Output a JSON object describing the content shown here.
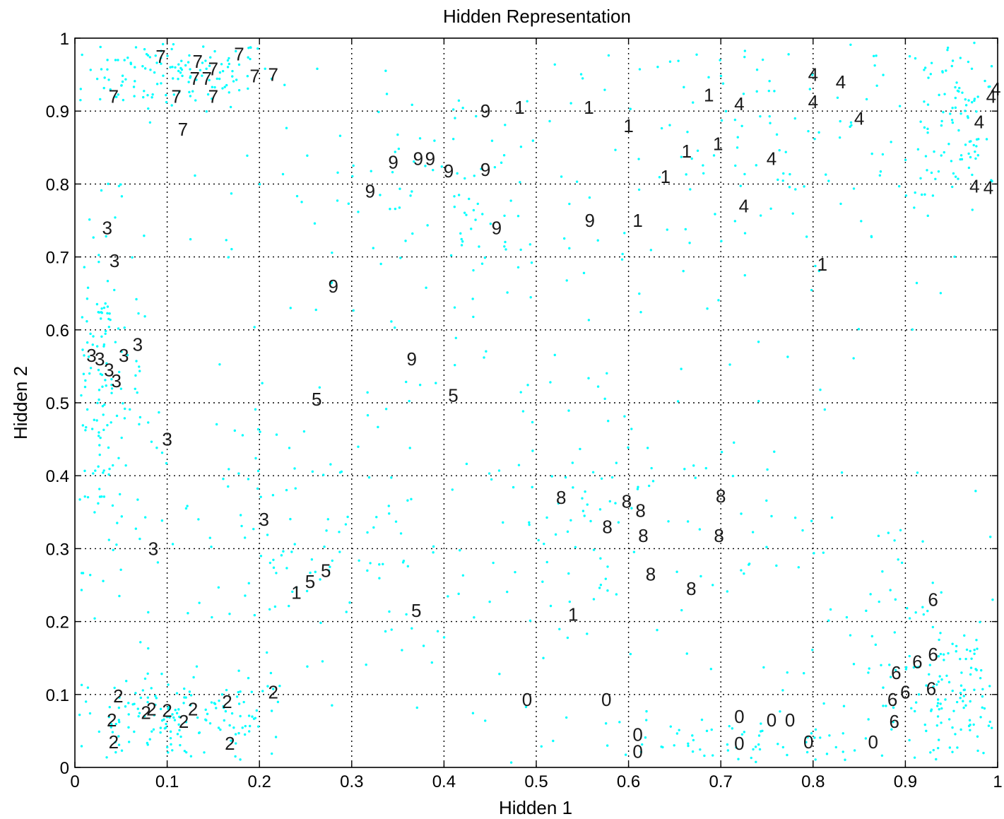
{
  "chart_data": {
    "type": "scatter",
    "title": "Hidden Representation",
    "xlabel": "Hidden 1",
    "ylabel": "Hidden 2",
    "xlim": [
      0,
      1
    ],
    "ylim": [
      0,
      1
    ],
    "grid": true,
    "xticks": [
      "0",
      "0.1",
      "0.2",
      "0.3",
      "0.4",
      "0.5",
      "0.6",
      "0.7",
      "0.8",
      "0.9",
      "1"
    ],
    "yticks": [
      "0",
      "0.1",
      "0.2",
      "0.3",
      "0.4",
      "0.5",
      "0.6",
      "0.7",
      "0.8",
      "0.9",
      "1"
    ],
    "colors": {
      "points": "#00ffff",
      "labels": "#1a1a1a",
      "grid": "#000000"
    },
    "digit_labels": [
      {
        "text": "7",
        "x": 0.093,
        "y": 0.975
      },
      {
        "text": "7",
        "x": 0.133,
        "y": 0.968
      },
      {
        "text": "7",
        "x": 0.178,
        "y": 0.978
      },
      {
        "text": "7",
        "x": 0.15,
        "y": 0.958
      },
      {
        "text": "7",
        "x": 0.13,
        "y": 0.945
      },
      {
        "text": "7",
        "x": 0.143,
        "y": 0.945
      },
      {
        "text": "7",
        "x": 0.195,
        "y": 0.948
      },
      {
        "text": "7",
        "x": 0.215,
        "y": 0.95
      },
      {
        "text": "7",
        "x": 0.042,
        "y": 0.92
      },
      {
        "text": "7",
        "x": 0.11,
        "y": 0.92
      },
      {
        "text": "7",
        "x": 0.15,
        "y": 0.92
      },
      {
        "text": "7",
        "x": 0.117,
        "y": 0.875
      },
      {
        "text": "3",
        "x": 0.035,
        "y": 0.74
      },
      {
        "text": "3",
        "x": 0.043,
        "y": 0.695
      },
      {
        "text": "3",
        "x": 0.068,
        "y": 0.58
      },
      {
        "text": "3",
        "x": 0.053,
        "y": 0.565
      },
      {
        "text": "3",
        "x": 0.018,
        "y": 0.565
      },
      {
        "text": "3",
        "x": 0.027,
        "y": 0.56
      },
      {
        "text": "3",
        "x": 0.037,
        "y": 0.545
      },
      {
        "text": "3",
        "x": 0.045,
        "y": 0.53
      },
      {
        "text": "3",
        "x": 0.1,
        "y": 0.45
      },
      {
        "text": "3",
        "x": 0.205,
        "y": 0.34
      },
      {
        "text": "3",
        "x": 0.085,
        "y": 0.3
      },
      {
        "text": "2",
        "x": 0.047,
        "y": 0.098
      },
      {
        "text": "2",
        "x": 0.083,
        "y": 0.08
      },
      {
        "text": "2",
        "x": 0.077,
        "y": 0.075
      },
      {
        "text": "2",
        "x": 0.1,
        "y": 0.078
      },
      {
        "text": "2",
        "x": 0.128,
        "y": 0.08
      },
      {
        "text": "2",
        "x": 0.165,
        "y": 0.09
      },
      {
        "text": "2",
        "x": 0.215,
        "y": 0.103
      },
      {
        "text": "2",
        "x": 0.04,
        "y": 0.065
      },
      {
        "text": "2",
        "x": 0.118,
        "y": 0.063
      },
      {
        "text": "2",
        "x": 0.042,
        "y": 0.035
      },
      {
        "text": "2",
        "x": 0.168,
        "y": 0.033
      },
      {
        "text": "9",
        "x": 0.445,
        "y": 0.9
      },
      {
        "text": "9",
        "x": 0.345,
        "y": 0.83
      },
      {
        "text": "9",
        "x": 0.372,
        "y": 0.835
      },
      {
        "text": "9",
        "x": 0.385,
        "y": 0.835
      },
      {
        "text": "9",
        "x": 0.405,
        "y": 0.818
      },
      {
        "text": "9",
        "x": 0.445,
        "y": 0.82
      },
      {
        "text": "9",
        "x": 0.32,
        "y": 0.79
      },
      {
        "text": "9",
        "x": 0.457,
        "y": 0.74
      },
      {
        "text": "9",
        "x": 0.558,
        "y": 0.75
      },
      {
        "text": "9",
        "x": 0.28,
        "y": 0.66
      },
      {
        "text": "9",
        "x": 0.365,
        "y": 0.56
      },
      {
        "text": "1",
        "x": 0.482,
        "y": 0.905
      },
      {
        "text": "1",
        "x": 0.557,
        "y": 0.905
      },
      {
        "text": "1",
        "x": 0.6,
        "y": 0.88
      },
      {
        "text": "1",
        "x": 0.687,
        "y": 0.922
      },
      {
        "text": "1",
        "x": 0.663,
        "y": 0.845
      },
      {
        "text": "1",
        "x": 0.697,
        "y": 0.855
      },
      {
        "text": "1",
        "x": 0.64,
        "y": 0.81
      },
      {
        "text": "1",
        "x": 0.61,
        "y": 0.75
      },
      {
        "text": "1",
        "x": 0.81,
        "y": 0.69
      },
      {
        "text": "1",
        "x": 0.24,
        "y": 0.24
      },
      {
        "text": "1",
        "x": 0.54,
        "y": 0.21
      },
      {
        "text": "4",
        "x": 0.8,
        "y": 0.95
      },
      {
        "text": "4",
        "x": 0.83,
        "y": 0.94
      },
      {
        "text": "4",
        "x": 0.72,
        "y": 0.91
      },
      {
        "text": "4",
        "x": 0.8,
        "y": 0.913
      },
      {
        "text": "4",
        "x": 0.85,
        "y": 0.89
      },
      {
        "text": "4",
        "x": 0.755,
        "y": 0.835
      },
      {
        "text": "4",
        "x": 0.725,
        "y": 0.77
      },
      {
        "text": "4",
        "x": 0.998,
        "y": 0.93
      },
      {
        "text": "4",
        "x": 0.993,
        "y": 0.92
      },
      {
        "text": "4",
        "x": 0.98,
        "y": 0.885
      },
      {
        "text": "4",
        "x": 0.975,
        "y": 0.797
      },
      {
        "text": "4",
        "x": 0.99,
        "y": 0.795
      },
      {
        "text": "5",
        "x": 0.262,
        "y": 0.505
      },
      {
        "text": "5",
        "x": 0.41,
        "y": 0.51
      },
      {
        "text": "5",
        "x": 0.272,
        "y": 0.27
      },
      {
        "text": "5",
        "x": 0.255,
        "y": 0.255
      },
      {
        "text": "5",
        "x": 0.37,
        "y": 0.215
      },
      {
        "text": "8",
        "x": 0.527,
        "y": 0.37
      },
      {
        "text": "8",
        "x": 0.598,
        "y": 0.365
      },
      {
        "text": "8",
        "x": 0.613,
        "y": 0.352
      },
      {
        "text": "8",
        "x": 0.7,
        "y": 0.372
      },
      {
        "text": "8",
        "x": 0.577,
        "y": 0.33
      },
      {
        "text": "8",
        "x": 0.616,
        "y": 0.318
      },
      {
        "text": "8",
        "x": 0.698,
        "y": 0.318
      },
      {
        "text": "8",
        "x": 0.624,
        "y": 0.265
      },
      {
        "text": "8",
        "x": 0.668,
        "y": 0.245
      },
      {
        "text": "0",
        "x": 0.49,
        "y": 0.093
      },
      {
        "text": "0",
        "x": 0.576,
        "y": 0.093
      },
      {
        "text": "0",
        "x": 0.72,
        "y": 0.07
      },
      {
        "text": "0",
        "x": 0.755,
        "y": 0.065
      },
      {
        "text": "0",
        "x": 0.775,
        "y": 0.065
      },
      {
        "text": "0",
        "x": 0.61,
        "y": 0.045
      },
      {
        "text": "0",
        "x": 0.72,
        "y": 0.033
      },
      {
        "text": "0",
        "x": 0.795,
        "y": 0.035
      },
      {
        "text": "0",
        "x": 0.865,
        "y": 0.035
      },
      {
        "text": "0",
        "x": 0.61,
        "y": 0.022
      },
      {
        "text": "6",
        "x": 0.93,
        "y": 0.23
      },
      {
        "text": "6",
        "x": 0.93,
        "y": 0.155
      },
      {
        "text": "6",
        "x": 0.913,
        "y": 0.145
      },
      {
        "text": "6",
        "x": 0.89,
        "y": 0.13
      },
      {
        "text": "6",
        "x": 0.9,
        "y": 0.103
      },
      {
        "text": "6",
        "x": 0.928,
        "y": 0.108
      },
      {
        "text": "6",
        "x": 0.886,
        "y": 0.093
      },
      {
        "text": "6",
        "x": 0.888,
        "y": 0.063
      }
    ],
    "point_clusters": [
      {
        "cx": 0.1,
        "cy": 0.95,
        "sx": 0.06,
        "sy": 0.025,
        "n": 150
      },
      {
        "cx": 0.03,
        "cy": 0.52,
        "sx": 0.022,
        "sy": 0.12,
        "n": 170
      },
      {
        "cx": 0.11,
        "cy": 0.065,
        "sx": 0.07,
        "sy": 0.03,
        "n": 170
      },
      {
        "cx": 0.96,
        "cy": 0.08,
        "sx": 0.035,
        "sy": 0.05,
        "n": 120
      },
      {
        "cx": 0.96,
        "cy": 0.9,
        "sx": 0.035,
        "sy": 0.07,
        "n": 120
      },
      {
        "cx": 0.7,
        "cy": 0.03,
        "sx": 0.1,
        "sy": 0.02,
        "n": 80
      },
      {
        "cx": 0.25,
        "cy": 0.3,
        "sx": 0.08,
        "sy": 0.1,
        "n": 110
      },
      {
        "cx": 0.4,
        "cy": 0.78,
        "sx": 0.09,
        "sy": 0.08,
        "n": 90
      },
      {
        "cx": 0.75,
        "cy": 0.85,
        "sx": 0.1,
        "sy": 0.08,
        "n": 110
      },
      {
        "cx": 0.6,
        "cy": 0.3,
        "sx": 0.1,
        "sy": 0.1,
        "n": 90
      },
      {
        "cx": 0.5,
        "cy": 0.5,
        "sx": 0.3,
        "sy": 0.3,
        "n": 200
      },
      {
        "cx": 0.9,
        "cy": 0.2,
        "sx": 0.05,
        "sy": 0.08,
        "n": 60
      }
    ]
  }
}
